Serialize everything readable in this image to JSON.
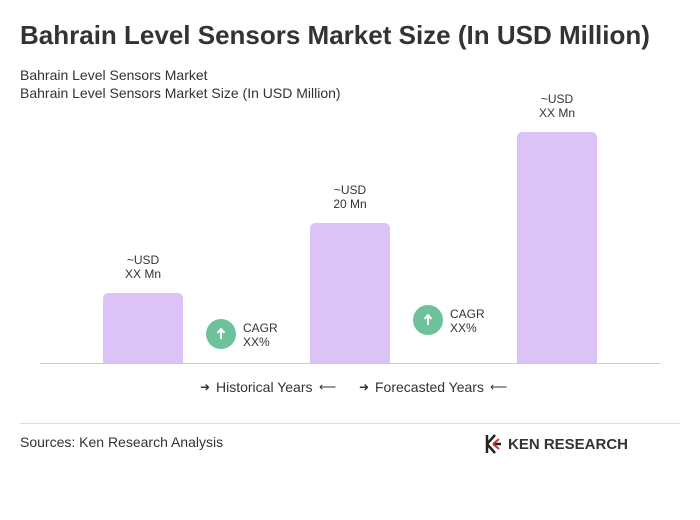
{
  "chart_data": {
    "type": "bar",
    "title": "Bahrain Level Sensors Market Size (In USD Million)",
    "subtitle": [
      "Bahrain Level Sensors Market",
      "Bahrain Level Sensors Market Size (In USD Million)"
    ],
    "categories": [
      null,
      null,
      null
    ],
    "values": [
      10,
      20,
      33
    ],
    "value_labels": [
      [
        "~USD",
        "XX Mn"
      ],
      [
        "~USD",
        "20 Mn"
      ],
      [
        "~USD",
        "XX Mn"
      ]
    ],
    "color": "#dcc3f7",
    "cagr": [
      [
        "CAGR",
        "XX%"
      ],
      [
        "CAGR",
        "XX%"
      ]
    ],
    "legend": [
      "Historical Years",
      "Forecasted Years"
    ],
    "source": "Sources: Ken Research Analysis",
    "logo": "KEN RESEARCH"
  }
}
